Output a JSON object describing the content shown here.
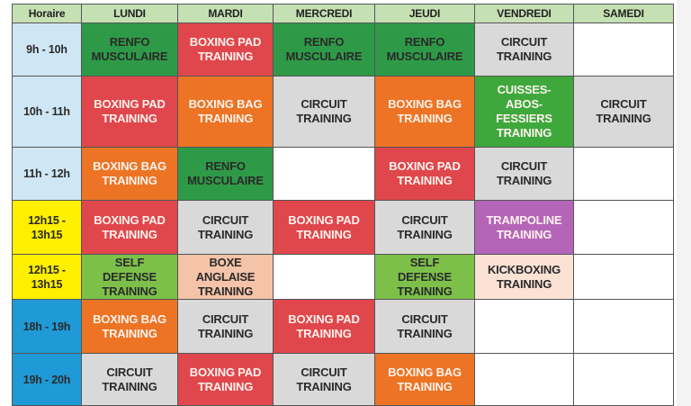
{
  "header": {
    "time_label": "Horaire",
    "days": [
      "LUNDI",
      "MARDI",
      "MERCREDI",
      "JEUDI",
      "VENDREDI",
      "SAMEDI"
    ]
  },
  "colors": {
    "header": "#c5e0b3",
    "time_morning": "#cfe6f5",
    "time_noon": "#ffef00",
    "time_evening": "#1f9ad6",
    "renfo": "#2e9a47",
    "boxing_pad": "#e0474c",
    "boxing_bag": "#ec7424",
    "circuit": "#d9d9d9",
    "cuisses": "#3ea83c",
    "self_defense": "#7cc04a",
    "boxe_anglaise": "#f4c3a8",
    "kickboxing": "#fbe2d5",
    "trampoline": "#b565b8",
    "empty": "#ffffff"
  },
  "rows": [
    {
      "time": "9h - 10h",
      "time_color": "time_morning",
      "cells": [
        {
          "text": "RENFO\nMUSCULAIRE",
          "color": "renfo"
        },
        {
          "text": "BOXING PAD\nTRAINING",
          "color": "boxing_pad"
        },
        {
          "text": "RENFO\nMUSCULAIRE",
          "color": "renfo"
        },
        {
          "text": "RENFO\nMUSCULAIRE",
          "color": "renfo"
        },
        {
          "text": "CIRCUIT\nTRAINING",
          "color": "circuit"
        },
        {
          "text": "",
          "color": "empty"
        }
      ]
    },
    {
      "time": "10h - 11h",
      "time_color": "time_morning",
      "cells": [
        {
          "text": "BOXING PAD\nTRAINING",
          "color": "boxing_pad"
        },
        {
          "text": "BOXING BAG\nTRAINING",
          "color": "boxing_bag"
        },
        {
          "text": "CIRCUIT\nTRAINING",
          "color": "circuit"
        },
        {
          "text": "BOXING BAG\nTRAINING",
          "color": "boxing_bag"
        },
        {
          "text": "CUISSES-\nABOS-\nFESSIERS\nTRAINING",
          "color": "cuisses"
        },
        {
          "text": "CIRCUIT\nTRAINING",
          "color": "circuit"
        }
      ]
    },
    {
      "time": "11h - 12h",
      "time_color": "time_morning",
      "cells": [
        {
          "text": "BOXING BAG\nTRAINING",
          "color": "boxing_bag"
        },
        {
          "text": "RENFO\nMUSCULAIRE",
          "color": "renfo"
        },
        {
          "text": "",
          "color": "empty"
        },
        {
          "text": "BOXING PAD\nTRAINING",
          "color": "boxing_pad"
        },
        {
          "text": "CIRCUIT\nTRAINING",
          "color": "circuit"
        },
        {
          "text": "",
          "color": "empty"
        }
      ]
    },
    {
      "time": "12h15 -\n13h15",
      "time_color": "time_noon",
      "cells": [
        {
          "text": "BOXING PAD\nTRAINING",
          "color": "boxing_pad"
        },
        {
          "text": "CIRCUIT\nTRAINING",
          "color": "circuit"
        },
        {
          "text": "BOXING PAD\nTRAINING",
          "color": "boxing_pad"
        },
        {
          "text": "CIRCUIT\nTRAINING",
          "color": "circuit"
        },
        {
          "text": "TRAMPOLINE\nTRAINING",
          "color": "trampoline"
        },
        {
          "text": "",
          "color": "empty"
        }
      ]
    },
    {
      "time": "12h15 -\n13h15",
      "time_color": "time_noon",
      "cells": [
        {
          "text": "SELF\nDEFENSE\nTRAINING",
          "color": "self_defense"
        },
        {
          "text": "BOXE\nANGLAISE\nTRAINING",
          "color": "boxe_anglaise"
        },
        {
          "text": "",
          "color": "empty"
        },
        {
          "text": "SELF\nDEFENSE\nTRAINING",
          "color": "self_defense"
        },
        {
          "text": "KICKBOXING\nTRAINING",
          "color": "kickboxing"
        },
        {
          "text": "",
          "color": "empty"
        }
      ]
    },
    {
      "time": "18h - 19h",
      "time_color": "time_evening",
      "cells": [
        {
          "text": "BOXING BAG\nTRAINING",
          "color": "boxing_bag"
        },
        {
          "text": "CIRCUIT\nTRAINING",
          "color": "circuit"
        },
        {
          "text": "BOXING PAD\nTRAINING",
          "color": "boxing_pad"
        },
        {
          "text": "CIRCUIT\nTRAINING",
          "color": "circuit"
        },
        {
          "text": "",
          "color": "empty"
        },
        {
          "text": "",
          "color": "empty"
        }
      ]
    },
    {
      "time": "19h - 20h",
      "time_color": "time_evening",
      "cells": [
        {
          "text": "CIRCUIT\nTRAINING",
          "color": "circuit"
        },
        {
          "text": "BOXING PAD\nTRAINING",
          "color": "boxing_pad"
        },
        {
          "text": "CIRCUIT\nTRAINING",
          "color": "circuit"
        },
        {
          "text": "BOXING BAG\nTRAINING",
          "color": "boxing_bag"
        },
        {
          "text": "",
          "color": "empty"
        },
        {
          "text": "",
          "color": "empty"
        }
      ]
    }
  ]
}
